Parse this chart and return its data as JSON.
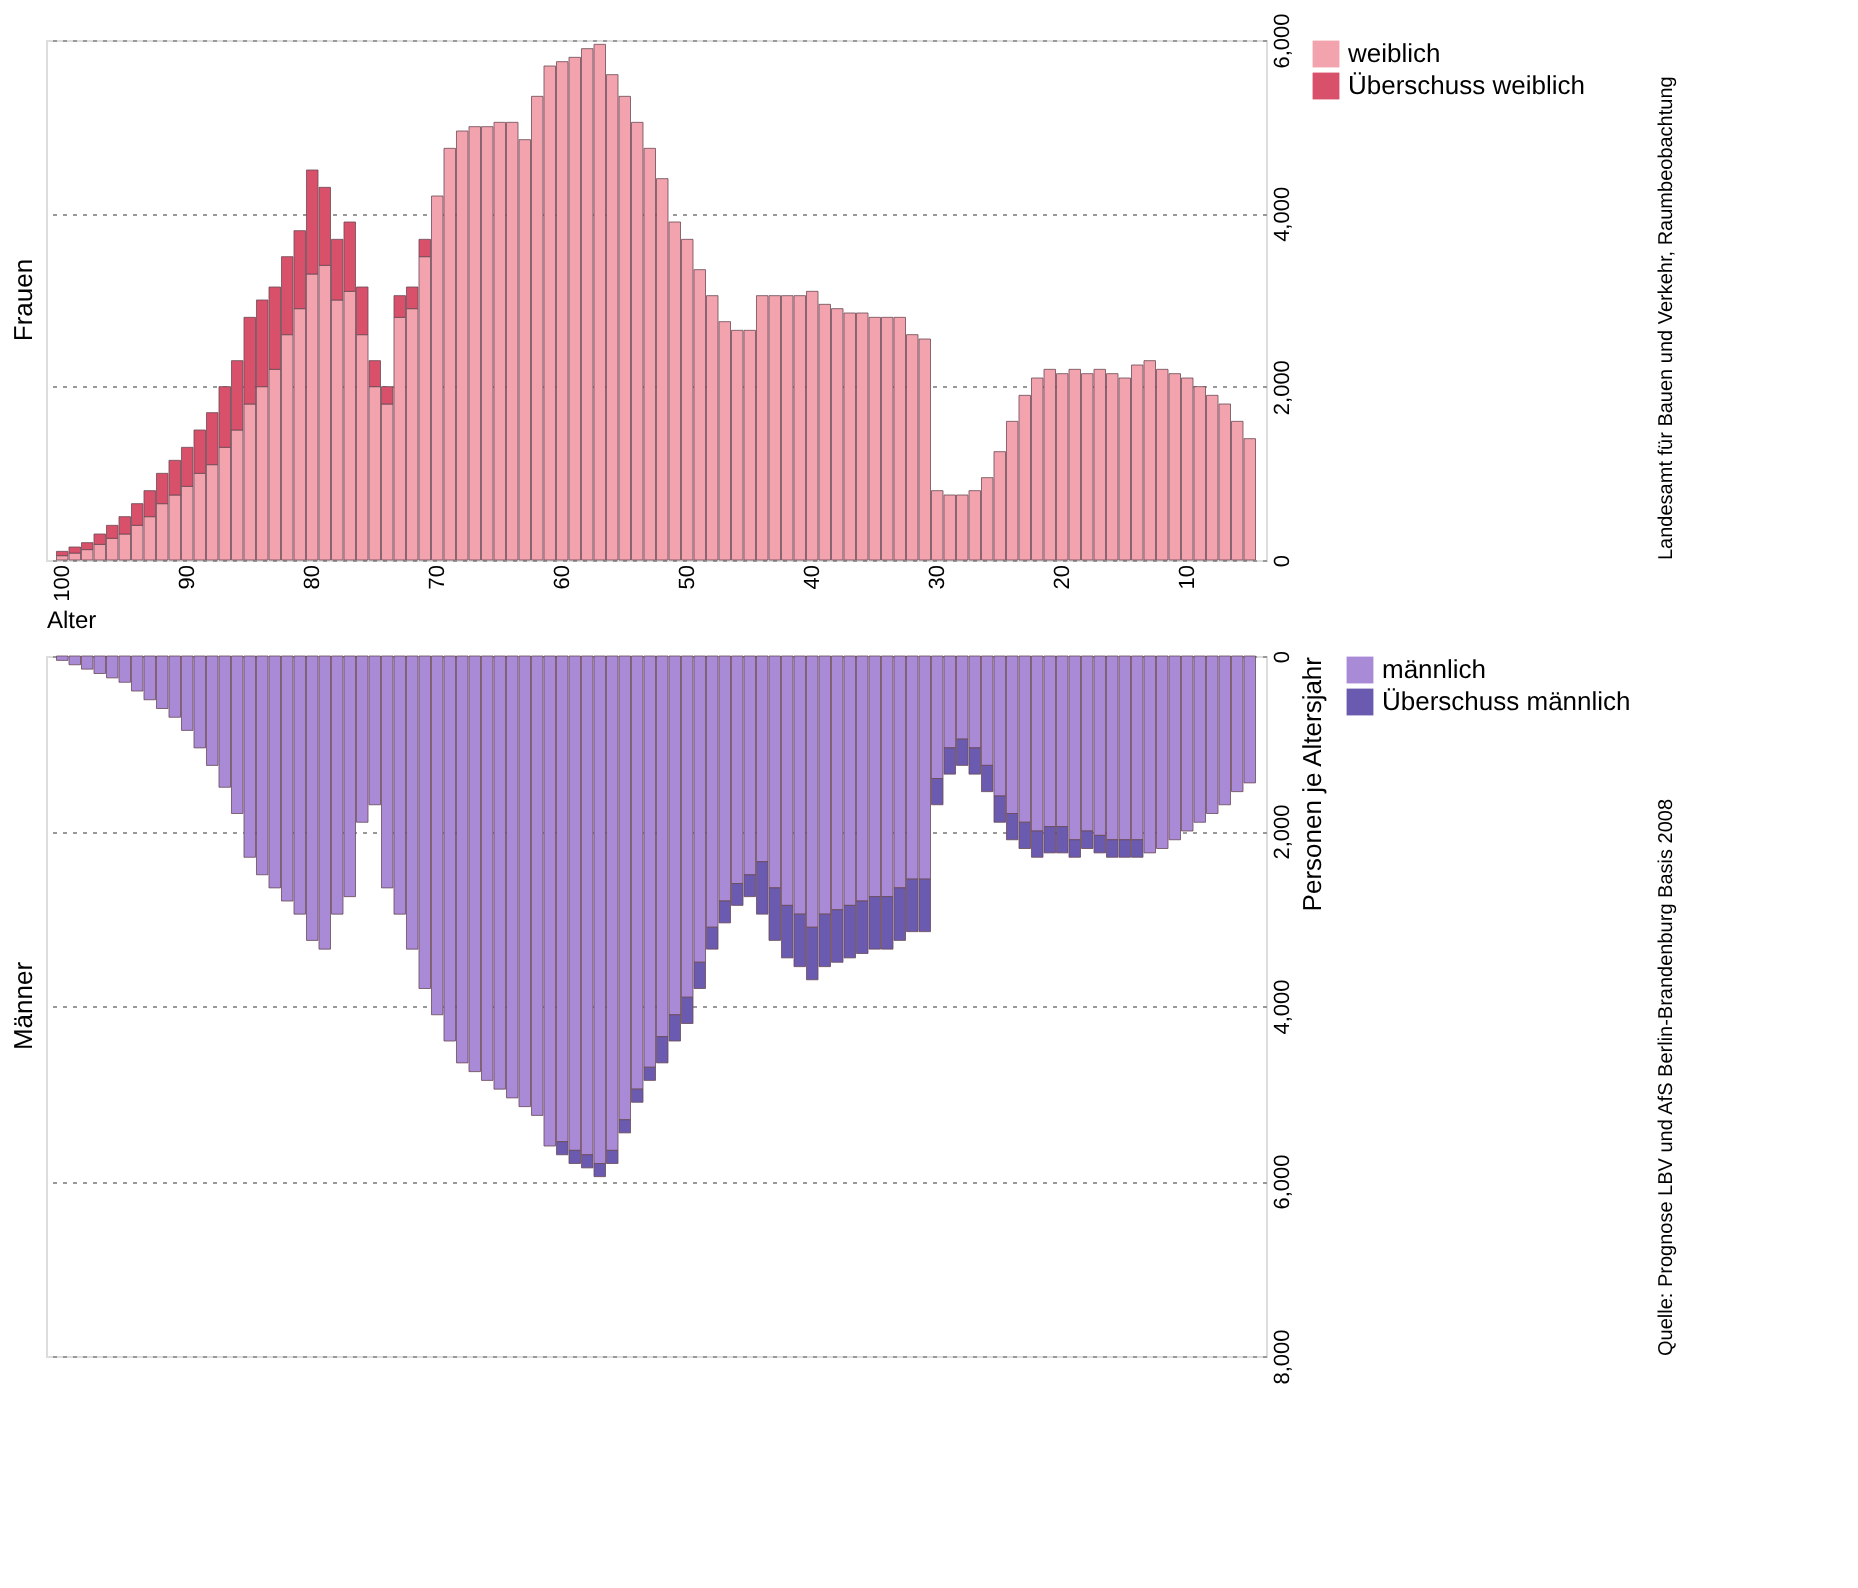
{
  "chart_data": [
    {
      "type": "bar",
      "title": "Frauen",
      "xlabel": "Alter",
      "stacked": true,
      "categories": [
        "100",
        null,
        null,
        null,
        null,
        null,
        null,
        null,
        null,
        null,
        "90",
        null,
        null,
        null,
        null,
        null,
        null,
        null,
        null,
        null,
        "80",
        null,
        null,
        null,
        null,
        null,
        null,
        null,
        null,
        null,
        "70",
        null,
        null,
        null,
        null,
        null,
        null,
        null,
        null,
        null,
        "60",
        null,
        null,
        null,
        null,
        null,
        null,
        null,
        null,
        null,
        "50",
        null,
        null,
        null,
        null,
        null,
        null,
        null,
        null,
        null,
        "40",
        null,
        null,
        null,
        null,
        null,
        null,
        null,
        null,
        null,
        "30",
        null,
        null,
        null,
        null,
        null,
        null,
        null,
        null,
        null,
        "20",
        null,
        null,
        null,
        null,
        null,
        null,
        null,
        null,
        null,
        "10",
        null,
        null,
        null,
        null,
        null
      ],
      "series": [
        {
          "name": "weiblich",
          "color": "#f2a3ad",
          "values": [
            50,
            80,
            120,
            180,
            250,
            300,
            400,
            500,
            650,
            750,
            850,
            1000,
            1100,
            1300,
            1500,
            1800,
            2000,
            2200,
            2600,
            2900,
            3300,
            3400,
            3000,
            3100,
            2600,
            2000,
            1800,
            2800,
            2900,
            3500,
            4200,
            4750,
            4950,
            5000,
            5000,
            5050,
            5050,
            4850,
            5350,
            5700,
            5750,
            5800,
            5900,
            5950,
            5600,
            5350,
            5050,
            4750,
            4400,
            3900,
            3700,
            3350,
            3050,
            2750,
            2650,
            2650,
            3050,
            3050,
            3050,
            3050,
            3100,
            2950,
            2900,
            2850,
            2850,
            2800,
            2800,
            2800,
            2600,
            2550,
            800,
            750,
            750,
            800,
            950,
            1250,
            1600,
            1900,
            2100,
            2200,
            2150,
            2200,
            2150,
            2200,
            2150,
            2100,
            2250,
            2300,
            2200,
            2150,
            2100,
            2000,
            1900,
            1800,
            1600,
            1400
          ]
        },
        {
          "name": "Überschuss weiblich",
          "color": "#d9506a",
          "values": [
            50,
            70,
            80,
            120,
            150,
            200,
            250,
            300,
            350,
            400,
            450,
            500,
            600,
            700,
            800,
            1000,
            1000,
            950,
            900,
            900,
            1200,
            900,
            700,
            800,
            550,
            300,
            200,
            250,
            250,
            200,
            null,
            null,
            null,
            null,
            null,
            null,
            null,
            null,
            null,
            null,
            null,
            null,
            null,
            null,
            null,
            null,
            null,
            null,
            null,
            null,
            null,
            null,
            null,
            null,
            null,
            null,
            null,
            null,
            null,
            null,
            null,
            null,
            null,
            null,
            null,
            null,
            null,
            null,
            null,
            null,
            null,
            null,
            null,
            null,
            null,
            null,
            null,
            null,
            null,
            null,
            null,
            null,
            null,
            null,
            null,
            null,
            null,
            null,
            null,
            null,
            null,
            null,
            null,
            null,
            null,
            null
          ]
        }
      ],
      "ylim": [
        0,
        6000
      ],
      "yticks": [
        0,
        {
          "value": 2000,
          "label": "2,000"
        },
        {
          "value": 4000,
          "label": "4,000"
        },
        {
          "value": 6000,
          "label": "6,000"
        }
      ],
      "grid": "y",
      "legend": "right",
      "annotations": [
        "Landesamt für Bauen und Verkehr, Raumbeobachtung"
      ]
    },
    {
      "type": "bar",
      "title": "Männer",
      "ylabel": "Personen je Altersjahr",
      "stacked": true,
      "tick_labels": "y",
      "categories": [
        "100",
        null,
        null,
        null,
        null,
        null,
        null,
        null,
        null,
        null,
        "90",
        null,
        null,
        null,
        null,
        null,
        null,
        null,
        null,
        null,
        "80",
        null,
        null,
        null,
        null,
        null,
        null,
        null,
        null,
        null,
        "70",
        null,
        null,
        null,
        null,
        null,
        null,
        null,
        null,
        null,
        "60",
        null,
        null,
        null,
        null,
        null,
        null,
        null,
        null,
        null,
        "50",
        null,
        null,
        null,
        null,
        null,
        null,
        null,
        null,
        null,
        "40",
        null,
        null,
        null,
        null,
        null,
        null,
        null,
        null,
        null,
        "30",
        null,
        null,
        null,
        null,
        null,
        null,
        null,
        null,
        null,
        "20",
        null,
        null,
        null,
        null,
        null,
        null,
        null,
        null,
        null,
        "10",
        null,
        null,
        null,
        null,
        null
      ],
      "series": [
        {
          "name": "männlich",
          "color": "#a98ad6",
          "values": [
            50,
            100,
            150,
            200,
            250,
            300,
            400,
            500,
            600,
            700,
            850,
            1050,
            1250,
            1500,
            1800,
            2300,
            2500,
            2650,
            2800,
            2950,
            3250,
            3350,
            2950,
            2750,
            1900,
            1700,
            2650,
            2950,
            3350,
            3800,
            4100,
            4400,
            4650,
            4750,
            4850,
            4950,
            5050,
            5150,
            5250,
            5600,
            5550,
            5650,
            5700,
            5800,
            5650,
            5300,
            4950,
            4700,
            4350,
            4100,
            3900,
            3500,
            3100,
            2800,
            2600,
            2500,
            2350,
            2650,
            2850,
            2950,
            3100,
            2950,
            2900,
            2850,
            2800,
            2750,
            2750,
            2650,
            2550,
            2550,
            1400,
            1050,
            950,
            1050,
            1250,
            1600,
            1800,
            1900,
            2000,
            1950,
            1950,
            2100,
            2000,
            2050,
            2100,
            2100,
            2100,
            2250,
            2200,
            2100,
            2000,
            1900,
            1800,
            1700,
            1550,
            1450
          ]
        },
        {
          "name": "Überschuss männlich",
          "color": "#6a5bb0",
          "values": [
            null,
            null,
            null,
            null,
            null,
            null,
            null,
            null,
            null,
            null,
            null,
            null,
            null,
            null,
            null,
            null,
            null,
            null,
            null,
            null,
            null,
            null,
            null,
            null,
            null,
            null,
            null,
            null,
            null,
            null,
            null,
            null,
            null,
            null,
            null,
            null,
            null,
            null,
            null,
            null,
            150,
            150,
            150,
            150,
            150,
            150,
            150,
            150,
            300,
            300,
            300,
            300,
            250,
            250,
            250,
            250,
            600,
            600,
            600,
            600,
            600,
            600,
            600,
            600,
            600,
            600,
            600,
            600,
            600,
            600,
            300,
            300,
            300,
            300,
            300,
            300,
            300,
            300,
            300,
            300,
            300,
            200,
            200,
            200,
            200,
            200,
            200,
            null,
            null,
            null,
            null,
            null,
            null,
            null,
            null,
            null
          ]
        }
      ],
      "ylim": [
        8000,
        0
      ],
      "yticks": [
        0,
        {
          "value": 2000,
          "label": "2,000"
        },
        {
          "value": 4000,
          "label": "4,000"
        },
        {
          "value": 6000,
          "label": "6,000"
        },
        {
          "value": 8000,
          "label": "8,000"
        }
      ],
      "grid": "y",
      "legend": "right",
      "annotations": [
        "Quelle: Prognose LBV und AfS Berlin-Brandenburg Basis 2008"
      ]
    }
  ]
}
